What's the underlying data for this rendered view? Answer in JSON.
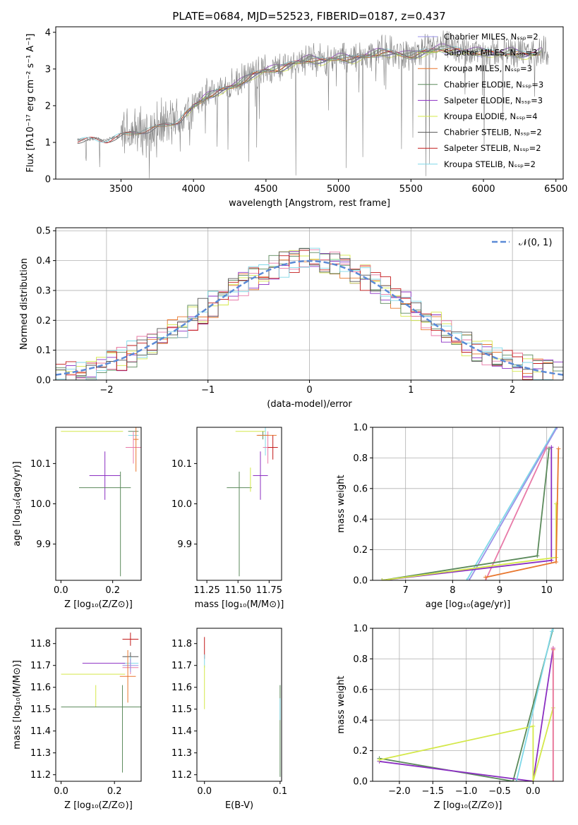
{
  "figure": {
    "title": "PLATE=0684, MJD=52523, FIBERID=0187, z=0.437"
  },
  "chart_data": [
    {
      "panel": "spectrum",
      "type": "line",
      "xlabel": "wavelength [Angstrom, rest frame]",
      "ylabel": "Flux [fλ10⁻¹⁷ erg cm⁻² s⁻¹ A⁻¹]",
      "xlim": [
        3050,
        6550
      ],
      "ylim": [
        0,
        4.15
      ],
      "xticks": [
        3500,
        4000,
        4500,
        5000,
        5500,
        6000,
        6500
      ],
      "yticks": [
        0,
        1,
        2,
        3,
        4
      ],
      "grid": false,
      "legend_position": "top-right",
      "data_continuum": {
        "x": [
          3200,
          3300,
          3400,
          3500,
          3600,
          3700,
          3800,
          3900,
          4000,
          4100,
          4200,
          4300,
          4400,
          4500,
          4600,
          4700,
          4800,
          4900,
          5000,
          5100,
          5200,
          5300,
          5400,
          5500,
          5600,
          5700,
          5800,
          5900,
          6000,
          6100,
          6200,
          6300,
          6400
        ],
        "y": [
          1.05,
          1.1,
          1.05,
          1.2,
          1.3,
          1.35,
          1.5,
          1.6,
          2.0,
          2.3,
          2.45,
          2.6,
          2.85,
          3.0,
          3.05,
          3.2,
          3.3,
          3.25,
          3.35,
          3.3,
          3.4,
          3.5,
          3.45,
          3.4,
          3.5,
          3.6,
          3.55,
          3.5,
          3.5,
          3.45,
          3.5,
          3.4,
          3.5
        ]
      },
      "series": [
        {
          "name": "Chabrier MILES, N_SSP=2",
          "color": "#9a93e8"
        },
        {
          "name": "Salpeter MILES, N_SSP=3",
          "color": "#a0c44d"
        },
        {
          "name": "Kroupa MILES, N_SSP=3",
          "color": "#e8772e"
        },
        {
          "name": "Chabrier ELODIE, N_SSP=3",
          "color": "#5b8a5b"
        },
        {
          "name": "Salpeter ELODIE, N_SSP=3",
          "color": "#8b2fc2"
        },
        {
          "name": "Kroupa ELODIE, N_SSP=4",
          "color": "#d4e84a"
        },
        {
          "name": "Chabrier STELIB, N_SSP=2",
          "color": "#555555"
        },
        {
          "name": "Salpeter STELIB, N_SSP=2",
          "color": "#c21a1a"
        },
        {
          "name": "Kroupa STELIB, N_SSP=2",
          "color": "#7fd8e8"
        }
      ]
    },
    {
      "panel": "residuals",
      "type": "line",
      "xlabel": "(data-model)/error",
      "ylabel": "Normed distribution",
      "xlim": [
        -2.5,
        2.5
      ],
      "ylim": [
        0,
        0.51
      ],
      "xticks": [
        -2,
        -1,
        0,
        1,
        2
      ],
      "yticks": [
        0.0,
        0.1,
        0.2,
        0.3,
        0.4,
        0.5
      ],
      "grid": true,
      "legend_position": "top-right",
      "legend": "𝒩(0, 1)",
      "gauss_color": "#5b8ad6",
      "series_colors": [
        "#e8772e",
        "#8b2fc2",
        "#d4e84a",
        "#5b8a5b",
        "#e87aa8",
        "#c21a1a",
        "#7fd8e8",
        "#555555"
      ]
    },
    {
      "panel": "age-vs-Z",
      "type": "scatter",
      "xlabel": "Z [log₁₀(Z/Z⊙)]",
      "ylabel": "age  [log₁₀(age/yr)]",
      "xlim": [
        -0.02,
        0.31
      ],
      "ylim": [
        9.81,
        10.19
      ],
      "xticks": [
        0.0,
        0.2
      ],
      "yticks": [
        9.9,
        10.0,
        10.1
      ],
      "points": [
        {
          "x": 0.12,
          "y": 10.18,
          "xerr": 0.12,
          "yerr": 0.0,
          "color": "#d4e84a"
        },
        {
          "x": 0.28,
          "y": 10.18,
          "xerr": 0.02,
          "yerr": 0.0,
          "color": "#5b8a5b"
        },
        {
          "x": 0.28,
          "y": 10.17,
          "xerr": 0.02,
          "yerr": 0.0,
          "color": "#7fd8e8"
        },
        {
          "x": 0.28,
          "y": 10.14,
          "xerr": 0.03,
          "yerr": 0.04,
          "color": "#e87aa8"
        },
        {
          "x": 0.29,
          "y": 10.16,
          "xerr": 0.01,
          "yerr": 0.08,
          "color": "#e8772e"
        },
        {
          "x": 0.17,
          "y": 10.07,
          "xerr": 0.06,
          "yerr": 0.06,
          "color": "#8b2fc2"
        },
        {
          "x": 0.17,
          "y": 10.04,
          "xerr": 0.1,
          "yerr": 0.0,
          "color": "#5b8a5b"
        },
        {
          "x": 0.23,
          "y": 9.95,
          "xerr": 0.0,
          "yerr": 0.13,
          "color": "#5b8a5b"
        }
      ]
    },
    {
      "panel": "age-vs-mass",
      "type": "scatter",
      "xlabel": "mass [log₁₀(M/M⊙)]",
      "xlim": [
        11.17,
        11.85
      ],
      "ylim": [
        9.81,
        10.19
      ],
      "xticks": [
        11.25,
        11.5,
        11.75
      ],
      "xtick_labels": [
        "11.25",
        "11.50",
        "11.75"
      ],
      "yticks": [
        9.9,
        10.0,
        10.1
      ],
      "points": [
        {
          "x": 11.6,
          "y": 10.18,
          "xerr": 0.12,
          "yerr": 0.0,
          "color": "#d4e84a"
        },
        {
          "x": 11.7,
          "y": 10.17,
          "xerr": 0.04,
          "yerr": 0.01,
          "color": "#5b8a5b"
        },
        {
          "x": 11.72,
          "y": 10.17,
          "xerr": 0.03,
          "yerr": 0.05,
          "color": "#7fd8e8"
        },
        {
          "x": 11.74,
          "y": 10.14,
          "xerr": 0.04,
          "yerr": 0.04,
          "color": "#e87aa8"
        },
        {
          "x": 11.73,
          "y": 10.17,
          "xerr": 0.08,
          "yerr": 0.0,
          "color": "#e8772e"
        },
        {
          "x": 11.78,
          "y": 10.14,
          "xerr": 0.04,
          "yerr": 0.03,
          "color": "#c21a1a"
        },
        {
          "x": 11.68,
          "y": 10.07,
          "xerr": 0.06,
          "yerr": 0.06,
          "color": "#8b2fc2"
        },
        {
          "x": 11.51,
          "y": 10.04,
          "xerr": 0.1,
          "yerr": 0.0,
          "color": "#5b8a5b"
        },
        {
          "x": 11.51,
          "y": 9.95,
          "xerr": 0.0,
          "yerr": 0.13,
          "color": "#5b8a5b"
        },
        {
          "x": 11.6,
          "y": 10.06,
          "xerr": 0.0,
          "yerr": 0.03,
          "color": "#d4e84a"
        }
      ]
    },
    {
      "panel": "massweight-vs-age",
      "type": "line",
      "xlabel": "age  [log₁₀(age/yr)]",
      "ylabel": "mass weight",
      "xlim": [
        6.3,
        10.35
      ],
      "ylim": [
        0,
        1
      ],
      "xticks": [
        7,
        8,
        9,
        10
      ],
      "yticks": [
        0.0,
        0.2,
        0.4,
        0.6,
        0.8,
        1.0
      ],
      "grid": true,
      "series": [
        {
          "color": "#7fd8e8",
          "x": [
            8.3,
            10.2
          ],
          "y": [
            0.0,
            1.0
          ]
        },
        {
          "color": "#9a93e8",
          "x": [
            8.35,
            10.22
          ],
          "y": [
            0.0,
            1.0
          ]
        },
        {
          "color": "#e87aa8",
          "x": [
            8.7,
            10.0
          ],
          "y": [
            0.0,
            0.87
          ]
        },
        {
          "color": "#8b2fc2",
          "x": [
            6.5,
            10.1,
            10.1
          ],
          "y": [
            0.0,
            0.13,
            0.87
          ]
        },
        {
          "color": "#5b8a5b",
          "x": [
            6.5,
            9.8,
            10.05
          ],
          "y": [
            0.0,
            0.16,
            0.86
          ]
        },
        {
          "color": "#d4e84a",
          "x": [
            6.5,
            10.2,
            10.2
          ],
          "y": [
            0.0,
            0.15,
            0.5
          ]
        },
        {
          "color": "#e8772e",
          "x": [
            8.7,
            10.2,
            10.25
          ],
          "y": [
            0.02,
            0.12,
            0.86
          ]
        }
      ]
    },
    {
      "panel": "mass-vs-Z",
      "type": "scatter",
      "xlabel": "Z [log₁₀(Z/Z⊙)]",
      "ylabel": "mass [log₁₀(M/M⊙)]",
      "xlim": [
        -0.02,
        0.3
      ],
      "ylim": [
        11.17,
        11.87
      ],
      "xticks": [
        0.0,
        0.2
      ],
      "yticks": [
        11.2,
        11.3,
        11.4,
        11.5,
        11.6,
        11.7,
        11.8
      ],
      "points": [
        {
          "x": 0.26,
          "y": 11.82,
          "xerr": 0.03,
          "yerr": 0.03,
          "color": "#c21a1a"
        },
        {
          "x": 0.26,
          "y": 11.74,
          "xerr": 0.03,
          "yerr": 0.02,
          "color": "#555555"
        },
        {
          "x": 0.26,
          "y": 11.71,
          "xerr": 0.03,
          "yerr": 0.03,
          "color": "#7fd8e8"
        },
        {
          "x": 0.26,
          "y": 11.69,
          "xerr": 0.03,
          "yerr": 0.03,
          "color": "#e87aa8"
        },
        {
          "x": 0.26,
          "y": 11.7,
          "xerr": 0.03,
          "yerr": 0.03,
          "color": "#9a93e8"
        },
        {
          "x": 0.16,
          "y": 11.71,
          "xerr": 0.08,
          "yerr": 0.0,
          "color": "#8b2fc2"
        },
        {
          "x": 0.25,
          "y": 11.65,
          "xerr": 0.03,
          "yerr": 0.12,
          "color": "#e8772e"
        },
        {
          "x": 0.12,
          "y": 11.66,
          "xerr": 0.12,
          "yerr": 0.0,
          "color": "#d4e84a"
        },
        {
          "x": 0.13,
          "y": 11.56,
          "xerr": 0.0,
          "yerr": 0.05,
          "color": "#d4e84a"
        },
        {
          "x": 0.15,
          "y": 11.51,
          "xerr": 0.15,
          "yerr": 0.0,
          "color": "#5b8a5b"
        },
        {
          "x": 0.23,
          "y": 11.41,
          "xerr": 0.0,
          "yerr": 0.2,
          "color": "#5b8a5b"
        }
      ]
    },
    {
      "panel": "mass-vs-EBV",
      "type": "scatter",
      "xlabel": "E(B-V)",
      "xlim": [
        -0.01,
        0.102
      ],
      "ylim": [
        11.17,
        11.87
      ],
      "xticks": [
        0.0,
        0.1
      ],
      "yticks": [
        11.2,
        11.3,
        11.4,
        11.5,
        11.6,
        11.7,
        11.8
      ],
      "points": [
        {
          "x": 0.0,
          "y": 11.78,
          "xerr": 0.0,
          "yerr": 0.05,
          "color": "#c21a1a"
        },
        {
          "x": 0.0,
          "y": 11.72,
          "xerr": 0.0,
          "yerr": 0.03,
          "color": "#7fd8e8"
        },
        {
          "x": 0.0,
          "y": 11.6,
          "xerr": 0.0,
          "yerr": 0.1,
          "color": "#d4e84a"
        },
        {
          "x": 0.1,
          "y": 11.4,
          "xerr": 0.0,
          "yerr": 0.21,
          "color": "#5b8a5b"
        },
        {
          "x": 0.1,
          "y": 11.5,
          "xerr": 0.0,
          "yerr": 0.05,
          "color": "#7fd8e8"
        }
      ]
    },
    {
      "panel": "massweight-vs-Z",
      "type": "line",
      "xlabel": "Z [log₁₀(Z/Z⊙)]",
      "ylabel": "mass weight",
      "xlim": [
        -2.4,
        0.45
      ],
      "ylim": [
        0,
        1
      ],
      "xticks": [
        -2.0,
        -1.5,
        -1.0,
        -0.5,
        0.0
      ],
      "yticks": [
        0.0,
        0.2,
        0.4,
        0.6,
        0.8,
        1.0
      ],
      "grid": true,
      "series": [
        {
          "color": "#5b8a5b",
          "x": [
            -2.3,
            -0.3,
            0.3
          ],
          "y": [
            0.15,
            0.0,
            1.0
          ]
        },
        {
          "color": "#8b2fc2",
          "x": [
            -2.3,
            0.0,
            0.3
          ],
          "y": [
            0.13,
            0.0,
            0.87
          ]
        },
        {
          "color": "#d4e84a",
          "x": [
            -2.3,
            0.0,
            0.0,
            0.3
          ],
          "y": [
            0.14,
            0.36,
            0.0,
            0.48
          ]
        },
        {
          "color": "#7fd8e8",
          "x": [
            -0.25,
            0.28,
            0.3
          ],
          "y": [
            0.0,
            0.98,
            1.0
          ]
        },
        {
          "color": "#e8772e",
          "x": [
            0.3,
            0.3
          ],
          "y": [
            0.0,
            0.86
          ]
        },
        {
          "color": "#e87aa8",
          "x": [
            0.3,
            0.3
          ],
          "y": [
            0.0,
            0.87
          ]
        }
      ]
    }
  ]
}
